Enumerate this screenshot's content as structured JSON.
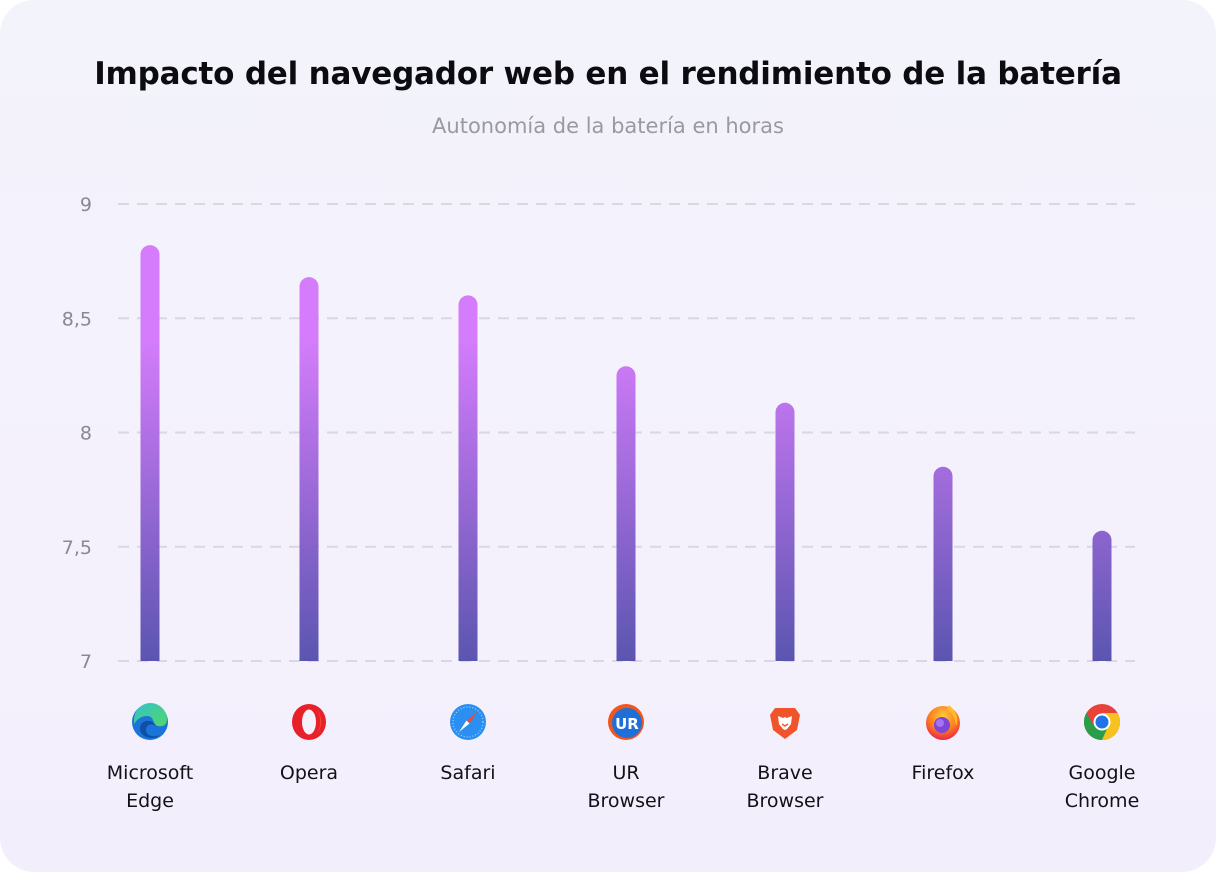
{
  "chart_data": {
    "type": "bar",
    "title": "Impacto del navegador web en el rendimiento de la batería",
    "subtitle": "Autonomía de la batería en horas",
    "xlabel": "",
    "ylabel": "",
    "ylim": [
      7,
      9
    ],
    "yticks": [
      9,
      8.5,
      8,
      7.5,
      7
    ],
    "ytick_labels": [
      "9",
      "8,5",
      "8",
      "7,5",
      "7"
    ],
    "grid": true,
    "categories": [
      "Microsoft Edge",
      "Opera",
      "Safari",
      "UR Browser",
      "Brave Browser",
      "Firefox",
      "Google Chrome"
    ],
    "category_lines": [
      [
        "Microsoft",
        "Edge"
      ],
      [
        "Opera"
      ],
      [
        "Safari"
      ],
      [
        "UR",
        "Browser"
      ],
      [
        "Brave",
        "Browser"
      ],
      [
        "Firefox"
      ],
      [
        "Google",
        "Chrome"
      ]
    ],
    "icons": [
      "edge-icon",
      "opera-icon",
      "safari-icon",
      "ur-browser-icon",
      "brave-icon",
      "firefox-icon",
      "chrome-icon"
    ],
    "values": [
      8.82,
      8.68,
      8.6,
      8.29,
      8.13,
      7.85,
      7.57
    ],
    "colors": {
      "bar_top": "#d47cfb",
      "bar_bottom": "#5b55b0",
      "grid": "#d9d6e8"
    }
  }
}
